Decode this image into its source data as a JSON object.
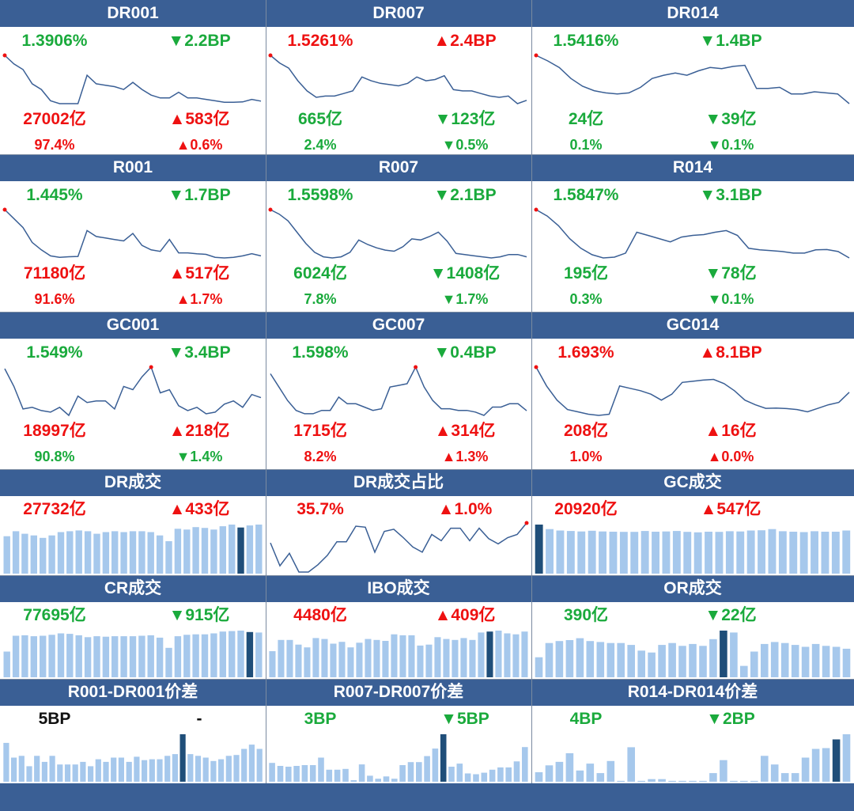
{
  "colors": {
    "header_bg": "#3A5F95",
    "up": "#ee1111",
    "down": "#1aaa3c",
    "line": "#3a5f95",
    "bar": "#a6c8ec",
    "bar_highlight": "#1f4e79",
    "marker": "#ee1111"
  },
  "chart_data": [
    {
      "title": "DR001",
      "type": "line",
      "stats": [
        {
          "text": "1.3906%",
          "dir": "down"
        },
        {
          "text": "▼2.2BP",
          "dir": "down"
        },
        {
          "text": "27002亿",
          "dir": "up"
        },
        {
          "text": "▲583亿",
          "dir": "up"
        },
        {
          "text": "97.4%",
          "dir": "up"
        },
        {
          "text": "▲0.6%",
          "dir": "up"
        }
      ],
      "values": [
        1.56,
        1.53,
        1.51,
        1.46,
        1.44,
        1.4,
        1.39,
        1.39,
        1.39,
        1.49,
        1.46,
        1.455,
        1.45,
        1.44,
        1.465,
        1.44,
        1.42,
        1.41,
        1.41,
        1.43,
        1.41,
        1.41,
        1.405,
        1.4,
        1.395,
        1.395,
        1.396,
        1.405,
        1.399
      ],
      "marker": "first"
    },
    {
      "title": "DR007",
      "type": "line",
      "stats": [
        {
          "text": "1.5261%",
          "dir": "up"
        },
        {
          "text": "▲2.4BP",
          "dir": "up"
        },
        {
          "text": "665亿",
          "dir": "down"
        },
        {
          "text": "▼123亿",
          "dir": "down"
        },
        {
          "text": "2.4%",
          "dir": "down"
        },
        {
          "text": "▼0.5%",
          "dir": "down"
        }
      ],
      "values": [
        1.88,
        1.82,
        1.78,
        1.68,
        1.6,
        1.55,
        1.56,
        1.56,
        1.58,
        1.6,
        1.71,
        1.68,
        1.66,
        1.65,
        1.64,
        1.66,
        1.71,
        1.68,
        1.69,
        1.72,
        1.61,
        1.6,
        1.6,
        1.58,
        1.56,
        1.55,
        1.56,
        1.5,
        1.526
      ],
      "marker": "first"
    },
    {
      "title": "DR014",
      "type": "line",
      "stats": [
        {
          "text": "1.5416%",
          "dir": "down"
        },
        {
          "text": "▼1.4BP",
          "dir": "down"
        },
        {
          "text": "24亿",
          "dir": "down"
        },
        {
          "text": "▼39亿",
          "dir": "down"
        },
        {
          "text": "0.1%",
          "dir": "down"
        },
        {
          "text": "▼0.1%",
          "dir": "down"
        }
      ],
      "values": [
        1.98,
        1.93,
        1.87,
        1.77,
        1.7,
        1.66,
        1.64,
        1.63,
        1.64,
        1.69,
        1.77,
        1.8,
        1.82,
        1.8,
        1.84,
        1.87,
        1.86,
        1.88,
        1.89,
        1.68,
        1.68,
        1.69,
        1.63,
        1.63,
        1.65,
        1.64,
        1.63,
        1.542
      ],
      "marker": "first"
    },
    {
      "title": "R001",
      "type": "line",
      "stats": [
        {
          "text": "1.445%",
          "dir": "down"
        },
        {
          "text": "▼1.7BP",
          "dir": "down"
        },
        {
          "text": "71180亿",
          "dir": "up"
        },
        {
          "text": "▲517亿",
          "dir": "up"
        },
        {
          "text": "91.6%",
          "dir": "up"
        },
        {
          "text": "▲1.7%",
          "dir": "up"
        }
      ],
      "values": [
        1.6,
        1.57,
        1.54,
        1.49,
        1.465,
        1.445,
        1.44,
        1.442,
        1.443,
        1.53,
        1.51,
        1.505,
        1.5,
        1.495,
        1.52,
        1.48,
        1.465,
        1.46,
        1.5,
        1.455,
        1.455,
        1.452,
        1.45,
        1.44,
        1.438,
        1.44,
        1.445,
        1.452,
        1.445
      ],
      "marker": "first"
    },
    {
      "title": "R007",
      "type": "line",
      "stats": [
        {
          "text": "1.5598%",
          "dir": "down"
        },
        {
          "text": "▼2.1BP",
          "dir": "down"
        },
        {
          "text": "6024亿",
          "dir": "down"
        },
        {
          "text": "▼1408亿",
          "dir": "down"
        },
        {
          "text": "7.8%",
          "dir": "down"
        },
        {
          "text": "▼1.7%",
          "dir": "down"
        }
      ],
      "values": [
        2.02,
        1.98,
        1.92,
        1.82,
        1.72,
        1.64,
        1.6,
        1.59,
        1.6,
        1.64,
        1.75,
        1.71,
        1.68,
        1.66,
        1.65,
        1.69,
        1.76,
        1.75,
        1.78,
        1.82,
        1.74,
        1.63,
        1.62,
        1.61,
        1.6,
        1.59,
        1.6,
        1.62,
        1.62,
        1.6
      ],
      "marker": "first"
    },
    {
      "title": "R014",
      "type": "line",
      "stats": [
        {
          "text": "1.5847%",
          "dir": "down"
        },
        {
          "text": "▼3.1BP",
          "dir": "down"
        },
        {
          "text": "195亿",
          "dir": "down"
        },
        {
          "text": "▼78亿",
          "dir": "down"
        },
        {
          "text": "0.3%",
          "dir": "down"
        },
        {
          "text": "▼0.1%",
          "dir": "down"
        }
      ],
      "values": [
        1.96,
        1.92,
        1.86,
        1.78,
        1.72,
        1.68,
        1.66,
        1.665,
        1.69,
        1.82,
        1.8,
        1.78,
        1.76,
        1.79,
        1.8,
        1.805,
        1.82,
        1.83,
        1.8,
        1.72,
        1.71,
        1.705,
        1.7,
        1.69,
        1.69,
        1.71,
        1.712,
        1.7,
        1.66
      ],
      "marker": "first"
    },
    {
      "title": "GC001",
      "type": "line",
      "stats": [
        {
          "text": "1.549%",
          "dir": "down"
        },
        {
          "text": "▼3.4BP",
          "dir": "down"
        },
        {
          "text": "18997亿",
          "dir": "up"
        },
        {
          "text": "▲218亿",
          "dir": "up"
        },
        {
          "text": "90.8%",
          "dir": "down"
        },
        {
          "text": "▼1.4%",
          "dir": "down"
        }
      ],
      "values": [
        1.75,
        1.64,
        1.5,
        1.51,
        1.49,
        1.48,
        1.51,
        1.46,
        1.58,
        1.54,
        1.55,
        1.55,
        1.5,
        1.64,
        1.62,
        1.7,
        1.76,
        1.6,
        1.62,
        1.52,
        1.49,
        1.51,
        1.47,
        1.48,
        1.53,
        1.55,
        1.51,
        1.59,
        1.57
      ],
      "marker": "max"
    },
    {
      "title": "GC007",
      "type": "line",
      "stats": [
        {
          "text": "1.598%",
          "dir": "down"
        },
        {
          "text": "▼0.4BP",
          "dir": "down"
        },
        {
          "text": "1715亿",
          "dir": "up"
        },
        {
          "text": "▲314亿",
          "dir": "up"
        },
        {
          "text": "8.2%",
          "dir": "up"
        },
        {
          "text": "▲1.3%",
          "dir": "up"
        }
      ],
      "values": [
        1.82,
        1.74,
        1.66,
        1.6,
        1.58,
        1.58,
        1.6,
        1.6,
        1.68,
        1.64,
        1.64,
        1.62,
        1.6,
        1.61,
        1.74,
        1.75,
        1.76,
        1.86,
        1.74,
        1.66,
        1.61,
        1.61,
        1.6,
        1.6,
        1.59,
        1.57,
        1.62,
        1.62,
        1.64,
        1.64,
        1.598
      ],
      "marker": "max"
    },
    {
      "title": "GC014",
      "type": "line",
      "stats": [
        {
          "text": "1.693%",
          "dir": "up"
        },
        {
          "text": "▲8.1BP",
          "dir": "up"
        },
        {
          "text": "208亿",
          "dir": "up"
        },
        {
          "text": "▲16亿",
          "dir": "up"
        },
        {
          "text": "1.0%",
          "dir": "up"
        },
        {
          "text": "▲0.0%",
          "dir": "up"
        }
      ],
      "values": [
        1.8,
        1.72,
        1.66,
        1.62,
        1.61,
        1.6,
        1.595,
        1.6,
        1.72,
        1.71,
        1.7,
        1.685,
        1.66,
        1.685,
        1.735,
        1.74,
        1.745,
        1.748,
        1.73,
        1.7,
        1.66,
        1.64,
        1.625,
        1.626,
        1.624,
        1.62,
        1.61,
        1.625,
        1.64,
        1.65,
        1.693
      ],
      "marker": "first"
    },
    {
      "title": "DR成交",
      "type": "bar",
      "stats": [
        {
          "text": "27732亿",
          "dir": "up"
        },
        {
          "text": "▲433亿",
          "dir": "up"
        }
      ],
      "values": [
        22500,
        25500,
        24000,
        23000,
        21500,
        23000,
        25000,
        25500,
        26000,
        25500,
        24000,
        25000,
        25500,
        25000,
        25500,
        25500,
        25000,
        23000,
        19500,
        27000,
        26500,
        28000,
        27500,
        26500,
        28500,
        29500,
        27732,
        29000,
        29500
      ],
      "highlight": 26
    },
    {
      "title": "DR成交占比",
      "type": "line",
      "stats": [
        {
          "text": "35.7%",
          "dir": "up"
        },
        {
          "text": "▲1.0%",
          "dir": "up"
        }
      ],
      "values": [
        33.8,
        31.6,
        32.8,
        31.0,
        31.0,
        31.7,
        32.6,
        33.9,
        33.9,
        35.4,
        35.3,
        32.9,
        34.9,
        35.1,
        34.3,
        33.4,
        32.9,
        34.6,
        34.0,
        35.2,
        35.2,
        34.0,
        35.2,
        34.2,
        33.7,
        34.3,
        34.6,
        35.7
      ],
      "marker": "last"
    },
    {
      "title": "GC成交",
      "type": "bar",
      "stats": [
        {
          "text": "20920亿",
          "dir": "up"
        },
        {
          "text": "▲547亿",
          "dir": "up"
        }
      ],
      "values": [
        20920,
        19000,
        18400,
        18200,
        18000,
        18300,
        18000,
        17900,
        17800,
        17800,
        18200,
        17900,
        18000,
        18200,
        17800,
        17600,
        17900,
        17800,
        18100,
        18000,
        18400,
        18500,
        19000,
        18100,
        17900,
        17700,
        18100,
        17900,
        17900,
        18400
      ],
      "highlight": 0
    },
    {
      "title": "CR成交",
      "type": "bar",
      "stats": [
        {
          "text": "77695亿",
          "dir": "down"
        },
        {
          "text": "▼915亿",
          "dir": "down"
        }
      ],
      "values": [
        55000,
        89000,
        90000,
        88000,
        89000,
        91000,
        94000,
        93000,
        90000,
        86000,
        88000,
        87000,
        88000,
        88000,
        88000,
        89000,
        90000,
        85000,
        63000,
        88000,
        91000,
        92000,
        92000,
        94000,
        98000,
        99000,
        100000,
        97000,
        96000
      ],
      "highlight": 27
    },
    {
      "title": "IBO成交",
      "type": "bar",
      "stats": [
        {
          "text": "4480亿",
          "dir": "up"
        },
        {
          "text": "▲409亿",
          "dir": "up"
        }
      ],
      "values": [
        2800,
        4000,
        4000,
        3500,
        3200,
        4200,
        4100,
        3600,
        3800,
        3200,
        3700,
        4100,
        4000,
        3900,
        4600,
        4500,
        4500,
        3400,
        3500,
        4300,
        4100,
        4000,
        4200,
        4000,
        4800,
        4900,
        5000,
        4700,
        4600,
        4900
      ],
      "highlight": 25
    },
    {
      "title": "OR成交",
      "type": "bar",
      "stats": [
        {
          "text": "390亿",
          "dir": "down"
        },
        {
          "text": "▼22亿",
          "dir": "down"
        }
      ],
      "values": [
        210,
        360,
        380,
        390,
        410,
        380,
        370,
        360,
        360,
        340,
        280,
        260,
        340,
        360,
        330,
        350,
        330,
        400,
        490,
        470,
        120,
        270,
        350,
        370,
        360,
        340,
        320,
        350,
        330,
        320,
        300
      ],
      "highlight": 18
    },
    {
      "title": "R001-DR001价差",
      "type": "bar",
      "stats": [
        {
          "text": "5BP",
          "dir": "neutral"
        },
        {
          "text": "-",
          "dir": "neutral"
        }
      ],
      "values": [
        4.5,
        2.8,
        3.0,
        1.8,
        3.0,
        2.3,
        3.0,
        2.0,
        2.0,
        2.0,
        2.3,
        1.8,
        2.6,
        2.3,
        2.8,
        2.8,
        2.3,
        2.9,
        2.5,
        2.6,
        2.6,
        3.0,
        3.2,
        5.5,
        3.2,
        3.0,
        2.8,
        2.4,
        2.6,
        3.0,
        3.1,
        3.8,
        4.3,
        3.8
      ],
      "highlight": 23
    },
    {
      "title": "R007-DR007价差",
      "type": "bar",
      "stats": [
        {
          "text": "3BP",
          "dir": "down"
        },
        {
          "text": "▼5BP",
          "dir": "down"
        }
      ],
      "values": [
        2.5,
        2.1,
        2.0,
        2.1,
        2.2,
        2.2,
        3.2,
        1.6,
        1.6,
        1.7,
        0.2,
        2.3,
        0.8,
        0.4,
        0.7,
        0.4,
        2.2,
        2.6,
        2.6,
        3.4,
        4.4,
        6.3,
        2.0,
        2.4,
        1.1,
        1.0,
        1.2,
        1.6,
        1.9,
        1.9,
        2.7,
        4.6
      ],
      "highlight": 21
    },
    {
      "title": "R014-DR014价差",
      "type": "bar",
      "stats": [
        {
          "text": "4BP",
          "dir": "down"
        },
        {
          "text": "▼2BP",
          "dir": "down"
        }
      ],
      "values": [
        1.1,
        1.9,
        2.3,
        3.3,
        1.3,
        2.1,
        1.0,
        2.4,
        0.1,
        4.0,
        0.1,
        0.3,
        0.3,
        0.1,
        0.1,
        0.1,
        0.1,
        1.0,
        2.5,
        0.1,
        0.1,
        0.1,
        3.0,
        2.0,
        1.0,
        1.0,
        2.8,
        3.8,
        3.9,
        4.9,
        5.5
      ],
      "highlight": 29
    }
  ]
}
